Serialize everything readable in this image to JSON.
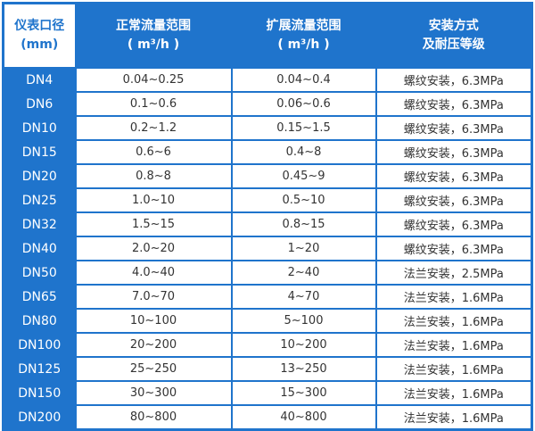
{
  "headers": [
    {
      "line1": "仪表口径",
      "line2": "(mm)"
    },
    {
      "line1": "正常流量范围",
      "line2": "( m³/h )"
    },
    {
      "line1": "扩展流量范围",
      "line2": "( m³/h )"
    },
    {
      "line1": "安装方式",
      "line2": "及耐压等级"
    }
  ],
  "rows": [
    [
      "DN4",
      "0.04~0.25",
      "0.04~0.4",
      "螺纹安装，6.3MPa"
    ],
    [
      "DN6",
      "0.1~0.6",
      "0.06~0.6",
      "螺纹安装，6.3MPa"
    ],
    [
      "DN10",
      "0.2~1.2",
      "0.15~1.5",
      "螺纹安装，6.3MPa"
    ],
    [
      "DN15",
      "0.6~6",
      "0.4~8",
      "螺纹安装，6.3MPa"
    ],
    [
      "DN20",
      "0.8~8",
      "0.45~9",
      "螺纹安装，6.3MPa"
    ],
    [
      "DN25",
      "1.0~10",
      "0.5~10",
      "螺纹安装，6.3MPa"
    ],
    [
      "DN32",
      "1.5~15",
      "0.8~15",
      "螺纹安装，6.3MPa"
    ],
    [
      "DN40",
      "2.0~20",
      "1~20",
      "螺纹安装，6.3MPa"
    ],
    [
      "DN50",
      "4.0~40",
      "2~40",
      "法兰安装，2.5MPa"
    ],
    [
      "DN65",
      "7.0~70",
      "4~70",
      "法兰安装，1.6MPa"
    ],
    [
      "DN80",
      "10~100",
      "5~100",
      "法兰安装，1.6MPa"
    ],
    [
      "DN100",
      "20~200",
      "10~200",
      "法兰安装，1.6MPa"
    ],
    [
      "DN125",
      "25~250",
      "13~250",
      "法兰安装，1.6MPa"
    ],
    [
      "DN150",
      "30~300",
      "15~300",
      "法兰安装，1.6MPa"
    ],
    [
      "DN200",
      "80~800",
      "40~800",
      "法兰安装，1.6MPa"
    ]
  ],
  "colors": {
    "accent": "#1f74cc"
  }
}
